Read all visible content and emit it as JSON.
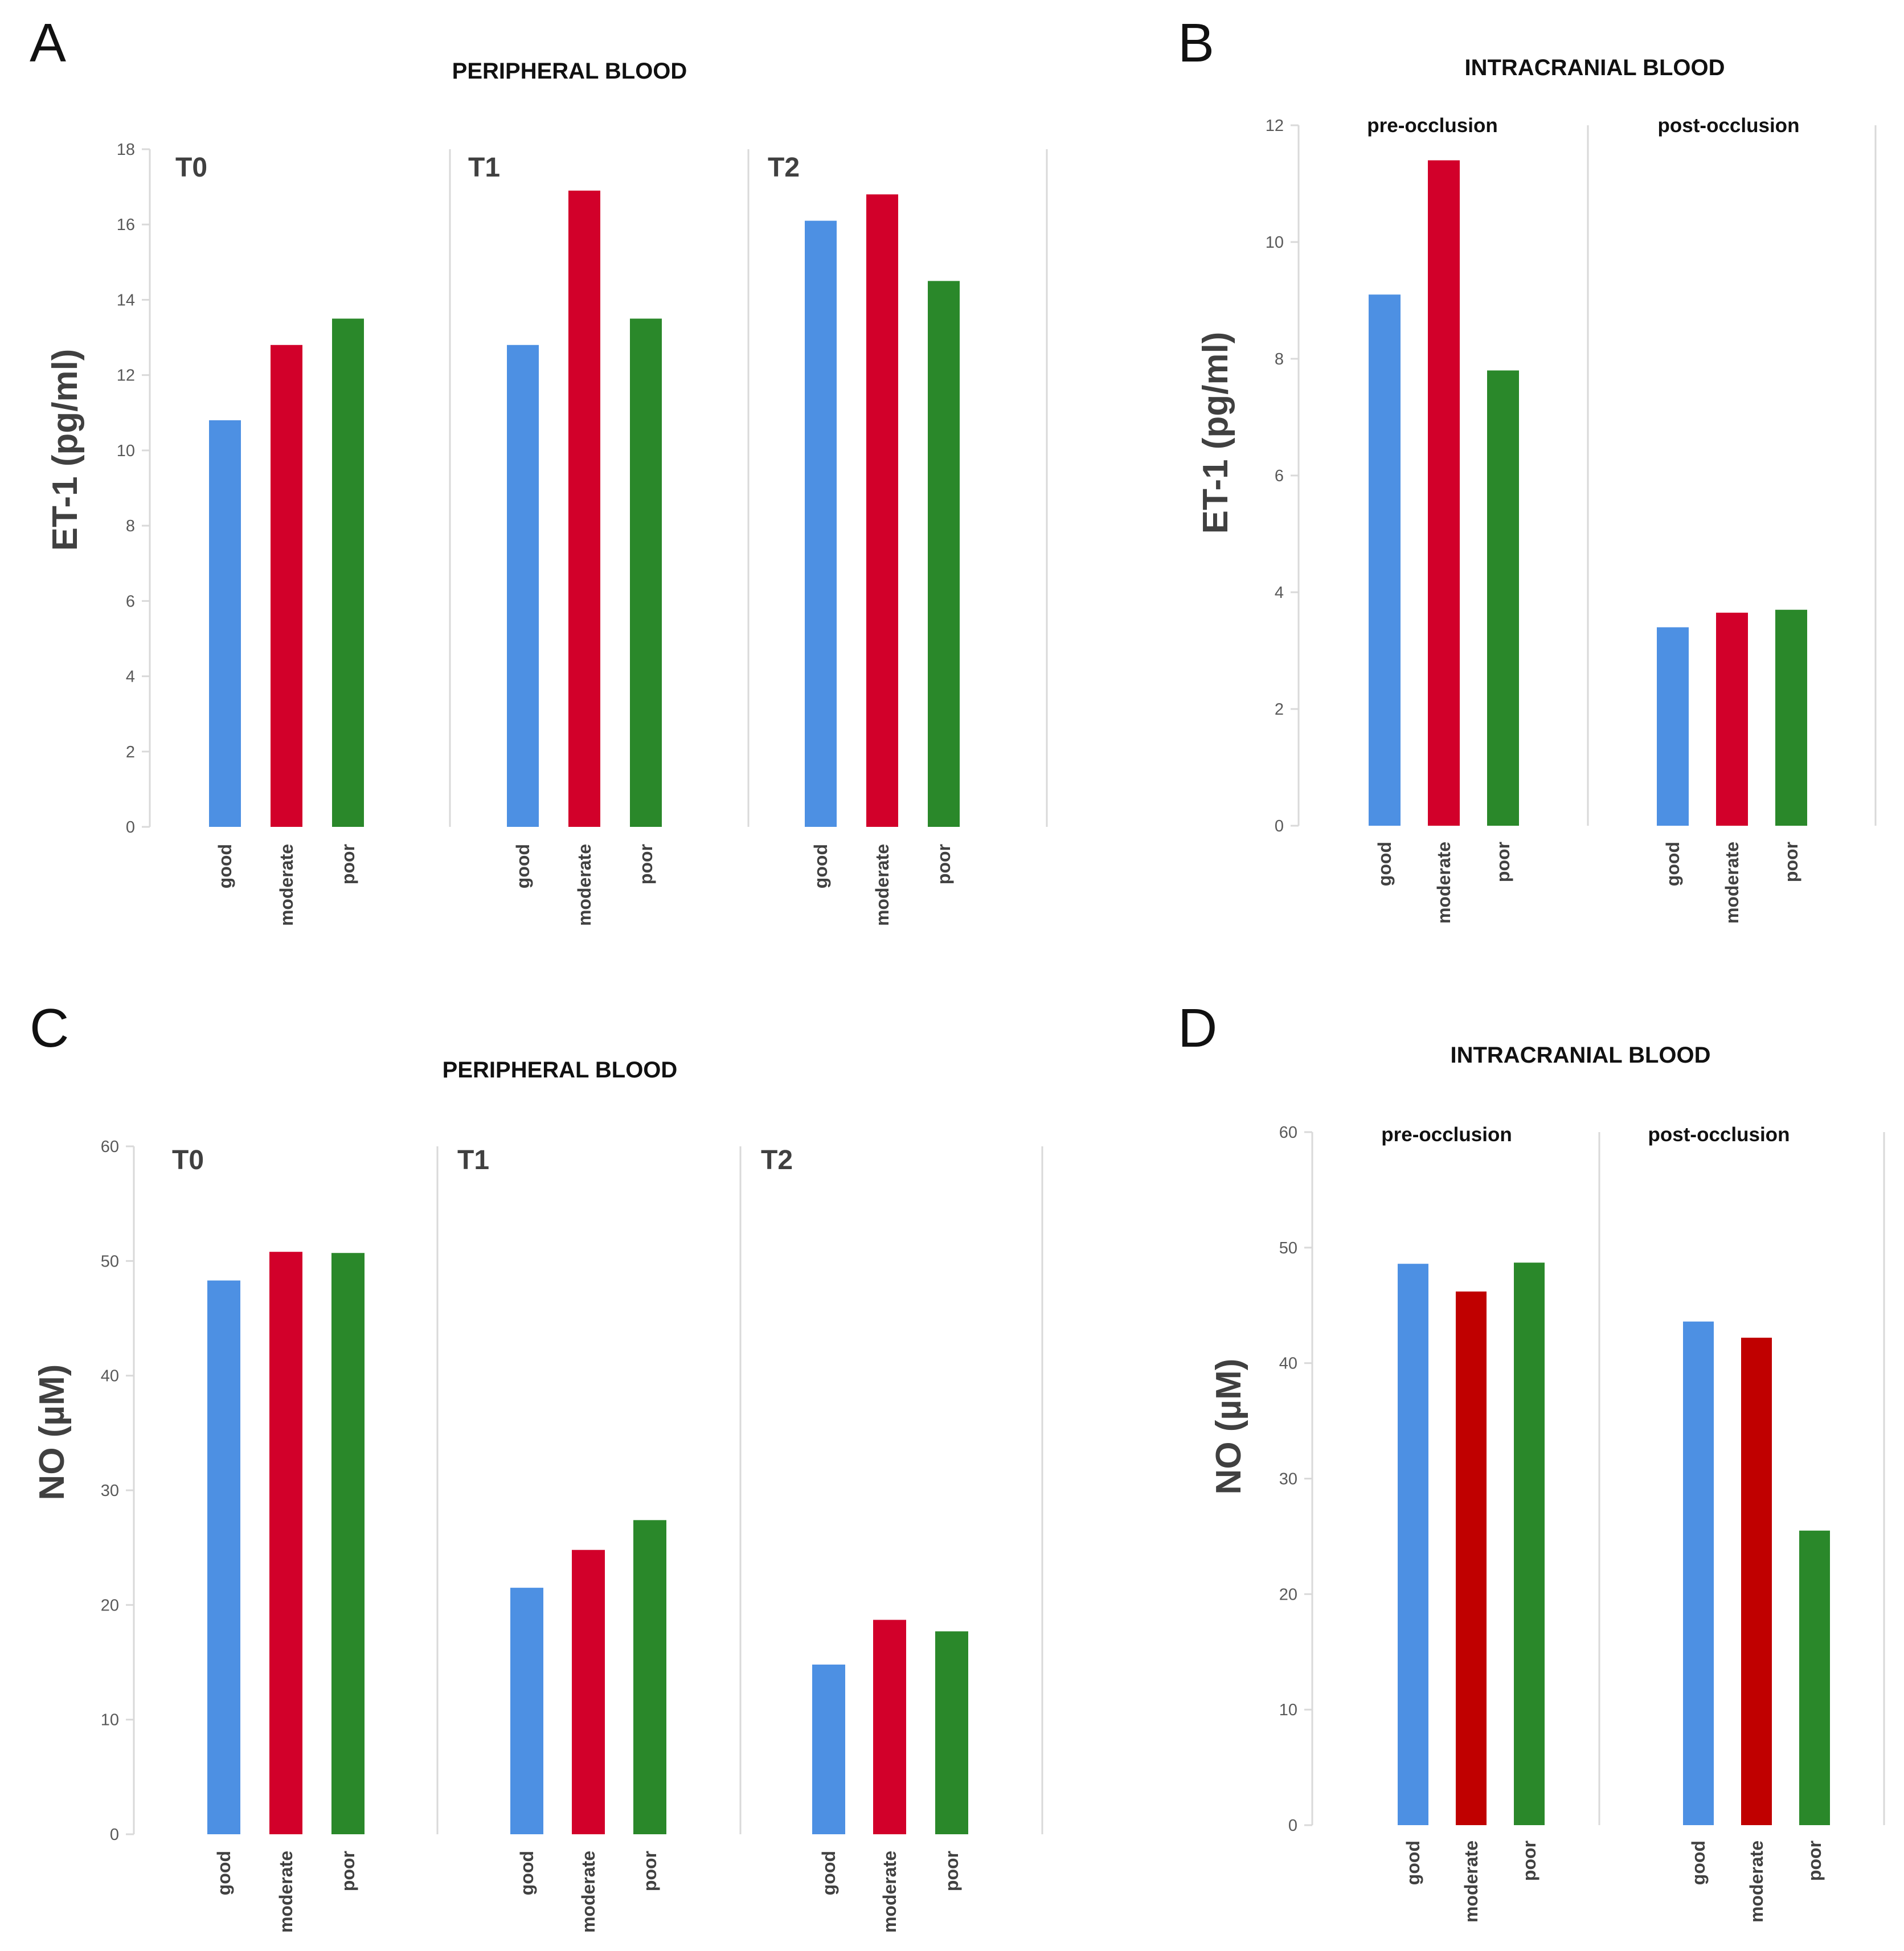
{
  "colors": {
    "good": "#4d90e3",
    "moderate": "#d2002a",
    "poor": "#2a882a",
    "moderate_dark": "#c00000"
  },
  "panels": [
    {
      "letter": "A",
      "title": "PERIPHERAL BLOOD"
    },
    {
      "letter": "B",
      "title": "INTRACRANIAL BLOOD"
    },
    {
      "letter": "C",
      "title": "PERIPHERAL BLOOD"
    },
    {
      "letter": "D",
      "title": "INTRACRANIAL BLOOD"
    }
  ],
  "chart_data": [
    {
      "type": "bar",
      "title": "PERIPHERAL BLOOD",
      "ylabel": "ET-1 (pg/ml)",
      "ylim": [
        0,
        18
      ],
      "yticks": [
        "0",
        "2",
        "4",
        "6",
        "8",
        "10",
        "12",
        "14",
        "16",
        "18"
      ],
      "groups": [
        "T0",
        "T1",
        "T2"
      ],
      "categories": [
        "good",
        "moderate",
        "poor"
      ],
      "values": [
        [
          10.8,
          12.8,
          13.5
        ],
        [
          12.8,
          16.9,
          13.5
        ],
        [
          16.1,
          16.8,
          14.5
        ]
      ]
    },
    {
      "type": "bar",
      "title": "INTRACRANIAL BLOOD",
      "ylabel": "ET-1 (pg/ml)",
      "ylim": [
        0,
        12
      ],
      "yticks": [
        "0",
        "2",
        "4",
        "6",
        "8",
        "10",
        "12"
      ],
      "groups": [
        "pre-occlusion",
        "post-occlusion"
      ],
      "categories": [
        "good",
        "moderate",
        "poor"
      ],
      "values": [
        [
          9.1,
          11.4,
          7.8
        ],
        [
          3.4,
          3.65,
          3.7
        ]
      ]
    },
    {
      "type": "bar",
      "title": "PERIPHERAL BLOOD",
      "ylabel": "NO (µM)",
      "ylim": [
        0,
        60
      ],
      "yticks": [
        "0",
        "10",
        "20",
        "30",
        "40",
        "50",
        "60"
      ],
      "groups": [
        "T0",
        "T1",
        "T2"
      ],
      "categories": [
        "good",
        "moderate",
        "poor"
      ],
      "values": [
        [
          48.3,
          50.8,
          50.7
        ],
        [
          21.5,
          24.8,
          27.4
        ],
        [
          14.8,
          18.7,
          17.7
        ]
      ]
    },
    {
      "type": "bar",
      "title": "INTRACRANIAL BLOOD",
      "ylabel": "NO (µM)",
      "ylim": [
        0,
        60
      ],
      "yticks": [
        "0",
        "10",
        "20",
        "30",
        "40",
        "50",
        "60"
      ],
      "groups": [
        "pre-occlusion",
        "post-occlusion"
      ],
      "categories": [
        "good",
        "moderate",
        "poor"
      ],
      "values": [
        [
          48.6,
          46.2,
          48.7
        ],
        [
          43.6,
          42.2,
          25.5
        ]
      ]
    }
  ]
}
